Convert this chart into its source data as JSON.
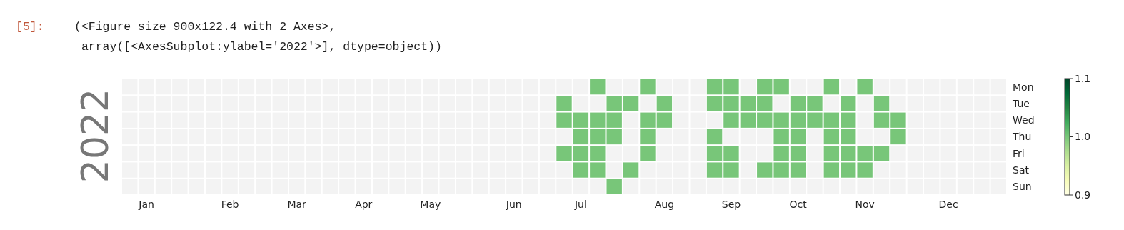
{
  "chart_data": {
    "type": "heatmap",
    "ylabel": "2022",
    "annotations": [
      "[5]:",
      "(<Figure size 900x122.4 with 2 Axes>,",
      " array([<AxesSubplot:ylabel='2022'>], dtype=object))"
    ],
    "categories": [
      null,
      "Jan",
      null,
      null,
      null,
      null,
      "Feb",
      null,
      null,
      null,
      "Mar",
      null,
      null,
      null,
      "Apr",
      null,
      null,
      null,
      "May",
      null,
      null,
      null,
      null,
      "Jun",
      null,
      null,
      null,
      "Jul",
      null,
      null,
      null,
      null,
      "Aug",
      null,
      null,
      null,
      "Sep",
      null,
      null,
      null,
      "Oct",
      null,
      null,
      null,
      "Nov",
      null,
      null,
      null,
      null,
      "Dec",
      null,
      null,
      null
    ],
    "y_categories": [
      "Mon",
      "Tue",
      "Wed",
      "Thu",
      "Fri",
      "Sat",
      "Sun"
    ],
    "cells": [
      [
        null,
        null,
        null,
        null,
        null,
        null,
        null,
        null,
        null,
        null,
        null,
        null,
        null,
        null,
        null,
        null,
        null,
        null,
        null,
        null,
        null,
        null,
        null,
        null,
        null,
        null,
        null,
        null,
        1,
        null,
        null,
        1,
        null,
        null,
        null,
        1,
        1,
        null,
        1,
        1,
        null,
        null,
        1,
        null,
        1,
        null,
        null,
        null,
        null,
        null,
        null,
        null,
        null
      ],
      [
        null,
        null,
        null,
        null,
        null,
        null,
        null,
        null,
        null,
        null,
        null,
        null,
        null,
        null,
        null,
        null,
        null,
        null,
        null,
        null,
        null,
        null,
        null,
        null,
        null,
        null,
        1,
        null,
        null,
        1,
        1,
        null,
        1,
        null,
        null,
        1,
        1,
        1,
        1,
        null,
        1,
        1,
        null,
        1,
        null,
        1,
        null,
        null,
        null,
        null,
        null,
        null,
        null
      ],
      [
        null,
        null,
        null,
        null,
        null,
        null,
        null,
        null,
        null,
        null,
        null,
        null,
        null,
        null,
        null,
        null,
        null,
        null,
        null,
        null,
        null,
        null,
        null,
        null,
        null,
        null,
        1,
        1,
        1,
        1,
        null,
        1,
        1,
        null,
        null,
        null,
        1,
        1,
        1,
        1,
        1,
        1,
        1,
        1,
        null,
        1,
        1,
        null,
        null,
        null,
        null,
        null,
        null
      ],
      [
        null,
        null,
        null,
        null,
        null,
        null,
        null,
        null,
        null,
        null,
        null,
        null,
        null,
        null,
        null,
        null,
        null,
        null,
        null,
        null,
        null,
        null,
        null,
        null,
        null,
        null,
        null,
        1,
        1,
        1,
        null,
        1,
        null,
        null,
        null,
        1,
        null,
        null,
        null,
        1,
        1,
        null,
        1,
        1,
        null,
        null,
        1,
        null,
        null,
        null,
        null,
        null,
        null
      ],
      [
        null,
        null,
        null,
        null,
        null,
        null,
        null,
        null,
        null,
        null,
        null,
        null,
        null,
        null,
        null,
        null,
        null,
        null,
        null,
        null,
        null,
        null,
        null,
        null,
        null,
        null,
        1,
        1,
        1,
        null,
        null,
        1,
        null,
        null,
        null,
        1,
        1,
        null,
        null,
        1,
        1,
        null,
        1,
        1,
        1,
        1,
        null,
        null,
        null,
        null,
        null,
        null,
        null
      ],
      [
        null,
        null,
        null,
        null,
        null,
        null,
        null,
        null,
        null,
        null,
        null,
        null,
        null,
        null,
        null,
        null,
        null,
        null,
        null,
        null,
        null,
        null,
        null,
        null,
        null,
        null,
        null,
        1,
        1,
        null,
        1,
        null,
        null,
        null,
        null,
        1,
        1,
        null,
        1,
        1,
        1,
        null,
        1,
        1,
        1,
        null,
        null,
        null,
        null,
        null,
        null,
        null,
        null
      ],
      [
        null,
        null,
        null,
        null,
        null,
        null,
        null,
        null,
        null,
        null,
        null,
        null,
        null,
        null,
        null,
        null,
        null,
        null,
        null,
        null,
        null,
        null,
        null,
        null,
        null,
        null,
        null,
        null,
        null,
        1,
        null,
        null,
        null,
        null,
        null,
        null,
        null,
        null,
        null,
        null,
        null,
        null,
        null,
        null,
        null,
        null,
        null,
        null,
        null,
        null,
        null,
        null,
        null
      ]
    ],
    "clim": [
      0.9,
      1.1
    ],
    "cticks": [
      0.9,
      {
        "value": 1,
        "label": "1.0"
      },
      1.1
    ]
  }
}
